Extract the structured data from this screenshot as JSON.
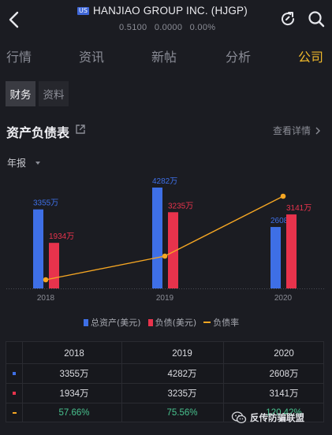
{
  "header": {
    "market_badge": "US",
    "title": "HANJIAO GROUP INC. (HJGP)",
    "price": "0.5100",
    "change": "0.0000",
    "change_pct": "0.00%"
  },
  "tabs": [
    {
      "label": "行情"
    },
    {
      "label": "资讯"
    },
    {
      "label": "新帖"
    },
    {
      "label": "分析"
    },
    {
      "label": "公司",
      "active": true
    }
  ],
  "subtabs": [
    {
      "label": "财务",
      "active": true
    },
    {
      "label": "资料"
    }
  ],
  "section": {
    "title": "资产负债表",
    "detail_link": "查看详情"
  },
  "period_select": {
    "value": "年报"
  },
  "colors": {
    "total_assets": "#3e6fe6",
    "liabilities": "#e8334c",
    "ratio": "#f5a623",
    "accent": "#f0b92b",
    "positive": "#48c28e"
  },
  "chart_data": {
    "type": "bar",
    "categories": [
      "2018",
      "2019",
      "2020"
    ],
    "series": [
      {
        "name": "总资产(美元)",
        "values": [
          3355,
          4282,
          2608
        ],
        "labels": [
          "3355万",
          "4282万",
          "2608万"
        ]
      },
      {
        "name": "负债(美元)",
        "values": [
          1934,
          3235,
          3141
        ],
        "labels": [
          "1934万",
          "3235万",
          "3141万"
        ]
      },
      {
        "name": "负债率",
        "type": "line",
        "values": [
          57.66,
          75.56,
          120.42
        ]
      }
    ],
    "unit": "万",
    "legend_position": "bottom"
  },
  "legend": [
    {
      "label": "总资产(美元)",
      "shape": "bar"
    },
    {
      "label": "负债(美元)",
      "shape": "bar"
    },
    {
      "label": "负债率",
      "shape": "line"
    }
  ],
  "table": {
    "columns": [
      "2018",
      "2019",
      "2020"
    ],
    "rows": [
      {
        "key": "total_assets",
        "values": [
          "3355万",
          "4282万",
          "2608万"
        ]
      },
      {
        "key": "liabilities",
        "values": [
          "1934万",
          "3235万",
          "3141万"
        ]
      },
      {
        "key": "ratio",
        "values": [
          "57.66%",
          "75.56%",
          "120.42%"
        ]
      }
    ]
  },
  "watermark": {
    "text": "反传防骗联盟",
    "icon": "wechat-icon"
  }
}
